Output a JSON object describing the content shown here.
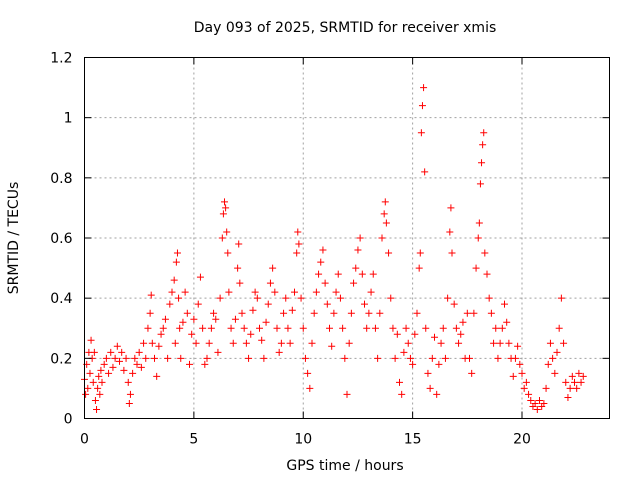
{
  "chart_data": {
    "type": "scatter",
    "title": "Day 093 of 2025, SRMTID for receiver xmis",
    "xlabel": "GPS time / hours",
    "ylabel": "SRMTID / TECUs",
    "xlim": [
      0,
      24
    ],
    "ylim": [
      0,
      1.2
    ],
    "grid": true,
    "marker": "+",
    "marker_color": "#ff0000",
    "x_ticks": [
      0,
      5,
      10,
      15,
      20
    ],
    "x_tick_labels": [
      "0",
      "5",
      "10",
      "15",
      "20"
    ],
    "y_ticks": [
      0,
      0.2,
      0.4,
      0.6,
      0.8,
      1.0,
      1.2
    ],
    "y_tick_labels": [
      "0",
      "0.2",
      "0.4",
      "0.6",
      "0.8",
      "1",
      "1.2"
    ],
    "series": [
      {
        "name": "SRMTID",
        "points": [
          [
            0.0,
            0.13
          ],
          [
            0.05,
            0.08
          ],
          [
            0.1,
            0.18
          ],
          [
            0.15,
            0.1
          ],
          [
            0.2,
            0.22
          ],
          [
            0.25,
            0.15
          ],
          [
            0.3,
            0.26
          ],
          [
            0.35,
            0.2
          ],
          [
            0.4,
            0.12
          ],
          [
            0.45,
            0.22
          ],
          [
            0.5,
            0.06
          ],
          [
            0.55,
            0.03
          ],
          [
            0.6,
            0.1
          ],
          [
            0.65,
            0.14
          ],
          [
            0.7,
            0.08
          ],
          [
            0.75,
            0.16
          ],
          [
            0.8,
            0.12
          ],
          [
            0.9,
            0.18
          ],
          [
            1.0,
            0.2
          ],
          [
            1.1,
            0.15
          ],
          [
            1.2,
            0.22
          ],
          [
            1.3,
            0.17
          ],
          [
            1.4,
            0.2
          ],
          [
            1.5,
            0.24
          ],
          [
            1.6,
            0.19
          ],
          [
            1.7,
            0.22
          ],
          [
            1.8,
            0.16
          ],
          [
            1.9,
            0.2
          ],
          [
            2.0,
            0.12
          ],
          [
            2.05,
            0.05
          ],
          [
            2.1,
            0.08
          ],
          [
            2.2,
            0.15
          ],
          [
            2.3,
            0.2
          ],
          [
            2.4,
            0.18
          ],
          [
            2.5,
            0.22
          ],
          [
            2.6,
            0.17
          ],
          [
            2.7,
            0.25
          ],
          [
            2.8,
            0.2
          ],
          [
            2.9,
            0.3
          ],
          [
            3.0,
            0.35
          ],
          [
            3.05,
            0.41
          ],
          [
            3.1,
            0.25
          ],
          [
            3.2,
            0.2
          ],
          [
            3.3,
            0.14
          ],
          [
            3.4,
            0.24
          ],
          [
            3.5,
            0.28
          ],
          [
            3.6,
            0.3
          ],
          [
            3.7,
            0.33
          ],
          [
            3.8,
            0.2
          ],
          [
            3.9,
            0.38
          ],
          [
            4.0,
            0.42
          ],
          [
            4.1,
            0.46
          ],
          [
            4.15,
            0.25
          ],
          [
            4.2,
            0.52
          ],
          [
            4.25,
            0.55
          ],
          [
            4.3,
            0.4
          ],
          [
            4.35,
            0.3
          ],
          [
            4.4,
            0.2
          ],
          [
            4.5,
            0.32
          ],
          [
            4.6,
            0.42
          ],
          [
            4.7,
            0.35
          ],
          [
            4.8,
            0.18
          ],
          [
            4.9,
            0.28
          ],
          [
            5.0,
            0.33
          ],
          [
            5.1,
            0.25
          ],
          [
            5.2,
            0.38
          ],
          [
            5.3,
            0.47
          ],
          [
            5.4,
            0.3
          ],
          [
            5.5,
            0.18
          ],
          [
            5.6,
            0.2
          ],
          [
            5.7,
            0.25
          ],
          [
            5.8,
            0.3
          ],
          [
            5.9,
            0.35
          ],
          [
            6.0,
            0.33
          ],
          [
            6.1,
            0.22
          ],
          [
            6.2,
            0.4
          ],
          [
            6.3,
            0.6
          ],
          [
            6.35,
            0.68
          ],
          [
            6.4,
            0.72
          ],
          [
            6.45,
            0.7
          ],
          [
            6.5,
            0.62
          ],
          [
            6.55,
            0.55
          ],
          [
            6.6,
            0.42
          ],
          [
            6.7,
            0.3
          ],
          [
            6.8,
            0.25
          ],
          [
            6.9,
            0.33
          ],
          [
            7.0,
            0.5
          ],
          [
            7.05,
            0.58
          ],
          [
            7.1,
            0.45
          ],
          [
            7.2,
            0.35
          ],
          [
            7.3,
            0.3
          ],
          [
            7.4,
            0.25
          ],
          [
            7.5,
            0.2
          ],
          [
            7.6,
            0.28
          ],
          [
            7.7,
            0.36
          ],
          [
            7.8,
            0.42
          ],
          [
            7.9,
            0.4
          ],
          [
            8.0,
            0.3
          ],
          [
            8.1,
            0.26
          ],
          [
            8.2,
            0.2
          ],
          [
            8.3,
            0.32
          ],
          [
            8.4,
            0.38
          ],
          [
            8.5,
            0.45
          ],
          [
            8.6,
            0.5
          ],
          [
            8.7,
            0.42
          ],
          [
            8.8,
            0.3
          ],
          [
            8.9,
            0.22
          ],
          [
            9.0,
            0.25
          ],
          [
            9.1,
            0.35
          ],
          [
            9.2,
            0.4
          ],
          [
            9.3,
            0.3
          ],
          [
            9.4,
            0.25
          ],
          [
            9.5,
            0.36
          ],
          [
            9.6,
            0.42
          ],
          [
            9.7,
            0.55
          ],
          [
            9.75,
            0.62
          ],
          [
            9.8,
            0.58
          ],
          [
            9.9,
            0.4
          ],
          [
            10.0,
            0.3
          ],
          [
            10.1,
            0.2
          ],
          [
            10.2,
            0.15
          ],
          [
            10.3,
            0.1
          ],
          [
            10.4,
            0.25
          ],
          [
            10.5,
            0.35
          ],
          [
            10.6,
            0.42
          ],
          [
            10.7,
            0.48
          ],
          [
            10.8,
            0.52
          ],
          [
            10.9,
            0.56
          ],
          [
            11.0,
            0.45
          ],
          [
            11.1,
            0.38
          ],
          [
            11.2,
            0.3
          ],
          [
            11.3,
            0.24
          ],
          [
            11.4,
            0.35
          ],
          [
            11.5,
            0.42
          ],
          [
            11.6,
            0.48
          ],
          [
            11.7,
            0.4
          ],
          [
            11.8,
            0.3
          ],
          [
            11.9,
            0.2
          ],
          [
            12.0,
            0.08
          ],
          [
            12.1,
            0.25
          ],
          [
            12.2,
            0.35
          ],
          [
            12.3,
            0.45
          ],
          [
            12.4,
            0.5
          ],
          [
            12.5,
            0.56
          ],
          [
            12.6,
            0.6
          ],
          [
            12.7,
            0.48
          ],
          [
            12.8,
            0.38
          ],
          [
            12.9,
            0.3
          ],
          [
            13.0,
            0.35
          ],
          [
            13.1,
            0.42
          ],
          [
            13.2,
            0.48
          ],
          [
            13.3,
            0.3
          ],
          [
            13.4,
            0.2
          ],
          [
            13.5,
            0.35
          ],
          [
            13.6,
            0.6
          ],
          [
            13.7,
            0.68
          ],
          [
            13.75,
            0.72
          ],
          [
            13.8,
            0.65
          ],
          [
            13.9,
            0.55
          ],
          [
            14.0,
            0.4
          ],
          [
            14.1,
            0.3
          ],
          [
            14.2,
            0.2
          ],
          [
            14.3,
            0.28
          ],
          [
            14.4,
            0.12
          ],
          [
            14.5,
            0.08
          ],
          [
            14.6,
            0.22
          ],
          [
            14.7,
            0.3
          ],
          [
            14.8,
            0.25
          ],
          [
            14.9,
            0.2
          ],
          [
            15.0,
            0.18
          ],
          [
            15.1,
            0.28
          ],
          [
            15.2,
            0.35
          ],
          [
            15.3,
            0.5
          ],
          [
            15.35,
            0.55
          ],
          [
            15.4,
            0.95
          ],
          [
            15.45,
            1.04
          ],
          [
            15.5,
            1.1
          ],
          [
            15.55,
            0.82
          ],
          [
            15.6,
            0.3
          ],
          [
            15.7,
            0.15
          ],
          [
            15.8,
            0.1
          ],
          [
            15.9,
            0.2
          ],
          [
            16.0,
            0.27
          ],
          [
            16.1,
            0.08
          ],
          [
            16.2,
            0.18
          ],
          [
            16.3,
            0.25
          ],
          [
            16.4,
            0.3
          ],
          [
            16.5,
            0.2
          ],
          [
            16.6,
            0.4
          ],
          [
            16.7,
            0.62
          ],
          [
            16.75,
            0.7
          ],
          [
            16.8,
            0.55
          ],
          [
            16.9,
            0.38
          ],
          [
            17.0,
            0.3
          ],
          [
            17.1,
            0.25
          ],
          [
            17.2,
            0.28
          ],
          [
            17.3,
            0.32
          ],
          [
            17.4,
            0.2
          ],
          [
            17.5,
            0.35
          ],
          [
            17.6,
            0.2
          ],
          [
            17.7,
            0.15
          ],
          [
            17.8,
            0.35
          ],
          [
            17.9,
            0.5
          ],
          [
            18.0,
            0.6
          ],
          [
            18.05,
            0.65
          ],
          [
            18.1,
            0.78
          ],
          [
            18.15,
            0.85
          ],
          [
            18.2,
            0.91
          ],
          [
            18.25,
            0.95
          ],
          [
            18.3,
            0.55
          ],
          [
            18.4,
            0.48
          ],
          [
            18.5,
            0.4
          ],
          [
            18.6,
            0.35
          ],
          [
            18.7,
            0.25
          ],
          [
            18.8,
            0.3
          ],
          [
            18.9,
            0.2
          ],
          [
            19.0,
            0.25
          ],
          [
            19.1,
            0.3
          ],
          [
            19.2,
            0.38
          ],
          [
            19.3,
            0.32
          ],
          [
            19.4,
            0.25
          ],
          [
            19.5,
            0.2
          ],
          [
            19.6,
            0.14
          ],
          [
            19.7,
            0.2
          ],
          [
            19.8,
            0.24
          ],
          [
            19.9,
            0.18
          ],
          [
            20.0,
            0.15
          ],
          [
            20.1,
            0.1
          ],
          [
            20.2,
            0.12
          ],
          [
            20.3,
            0.08
          ],
          [
            20.4,
            0.06
          ],
          [
            20.5,
            0.04
          ],
          [
            20.6,
            0.05
          ],
          [
            20.7,
            0.03
          ],
          [
            20.8,
            0.06
          ],
          [
            20.9,
            0.04
          ],
          [
            21.0,
            0.05
          ],
          [
            21.1,
            0.1
          ],
          [
            21.2,
            0.18
          ],
          [
            21.3,
            0.25
          ],
          [
            21.4,
            0.2
          ],
          [
            21.5,
            0.15
          ],
          [
            21.6,
            0.22
          ],
          [
            21.7,
            0.3
          ],
          [
            21.8,
            0.4
          ],
          [
            21.9,
            0.25
          ],
          [
            22.0,
            0.12
          ],
          [
            22.1,
            0.07
          ],
          [
            22.2,
            0.1
          ],
          [
            22.3,
            0.14
          ],
          [
            22.4,
            0.12
          ],
          [
            22.5,
            0.1
          ],
          [
            22.6,
            0.15
          ],
          [
            22.7,
            0.12
          ],
          [
            22.8,
            0.14
          ]
        ]
      }
    ]
  }
}
